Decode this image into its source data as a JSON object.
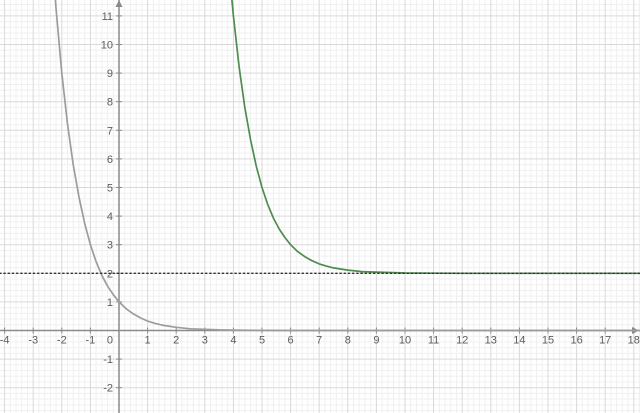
{
  "chart_data": {
    "type": "line",
    "title": "",
    "description": "Two exponential decay curves on a coordinate grid; gray curve decaying to y=0, green curve (shifted right 6 and up 2) decaying to the dotted horizontal asymptote y=2",
    "view": {
      "xmin": -4.161,
      "xmax": 18.217,
      "ymin": -2.885,
      "ymax": 11.556,
      "grid_minor_step": 0.2,
      "grid_major_step": 1,
      "grid": true,
      "legend": false
    },
    "axes": {
      "x_ticks": [
        -4,
        -3,
        -2,
        -1,
        1,
        2,
        3,
        4,
        5,
        6,
        7,
        8,
        9,
        10,
        11,
        12,
        13,
        14,
        15,
        16,
        17,
        18
      ],
      "y_ticks": [
        -2,
        -1,
        1,
        2,
        3,
        4,
        5,
        6,
        7,
        8,
        9,
        10,
        11
      ],
      "origin_label": "0",
      "xlabel": "",
      "ylabel": ""
    },
    "series": [
      {
        "id": "gray-curve",
        "style": "solid",
        "color": "#9c9c9c",
        "asymptote_y": 0,
        "points": [
          [
            -2.4,
            13.95
          ],
          [
            -2.2,
            11.23
          ],
          [
            -2.0,
            9.0
          ],
          [
            -1.8,
            7.22
          ],
          [
            -1.6,
            5.8
          ],
          [
            -1.4,
            4.66
          ],
          [
            -1.2,
            3.74
          ],
          [
            -1.0,
            3.0
          ],
          [
            -0.8,
            2.41
          ],
          [
            -0.6,
            1.93
          ],
          [
            -0.4,
            1.55
          ],
          [
            -0.2,
            1.25
          ],
          [
            0,
            1.0
          ],
          [
            0.25,
            0.76
          ],
          [
            0.5,
            0.58
          ],
          [
            0.75,
            0.44
          ],
          [
            1,
            0.33
          ],
          [
            1.25,
            0.25
          ],
          [
            1.5,
            0.19
          ],
          [
            2,
            0.11
          ],
          [
            2.5,
            0.06
          ],
          [
            3,
            0.04
          ],
          [
            3.5,
            0.02
          ],
          [
            4,
            0.012
          ],
          [
            5,
            0.004
          ],
          [
            6,
            0.001
          ],
          [
            8,
            0
          ],
          [
            12,
            0
          ],
          [
            18.3,
            0
          ]
        ]
      },
      {
        "id": "green-curve",
        "style": "solid",
        "color": "#4e8c4f",
        "asymptote_y": 2,
        "points": [
          [
            3.75,
            13.84
          ],
          [
            3.95,
            11.52
          ],
          [
            4.0,
            11.0
          ],
          [
            4.2,
            9.22
          ],
          [
            4.4,
            7.8
          ],
          [
            4.6,
            6.66
          ],
          [
            4.8,
            5.74
          ],
          [
            5.0,
            5.0
          ],
          [
            5.2,
            4.41
          ],
          [
            5.4,
            3.93
          ],
          [
            5.6,
            3.55
          ],
          [
            5.8,
            3.25
          ],
          [
            6.0,
            3.0
          ],
          [
            6.25,
            2.76
          ],
          [
            6.5,
            2.58
          ],
          [
            6.75,
            2.44
          ],
          [
            7,
            2.33
          ],
          [
            7.25,
            2.25
          ],
          [
            7.5,
            2.19
          ],
          [
            8,
            2.11
          ],
          [
            8.5,
            2.06
          ],
          [
            9,
            2.04
          ],
          [
            10,
            2.012
          ],
          [
            11,
            2.004
          ],
          [
            12,
            2.001
          ],
          [
            14,
            2
          ],
          [
            18.3,
            2
          ]
        ]
      },
      {
        "id": "asymptote-line",
        "style": "dotted",
        "color": "#303030",
        "y_value": 2,
        "points": [
          [
            -4.17,
            2
          ],
          [
            18.3,
            2
          ]
        ]
      }
    ],
    "colors": {
      "background": "#ffffff",
      "axis": "#8a8a8a",
      "grid_major": "#d9d9d9",
      "grid_minor": "#f0f0f0",
      "label": "#5c5c5c"
    }
  }
}
